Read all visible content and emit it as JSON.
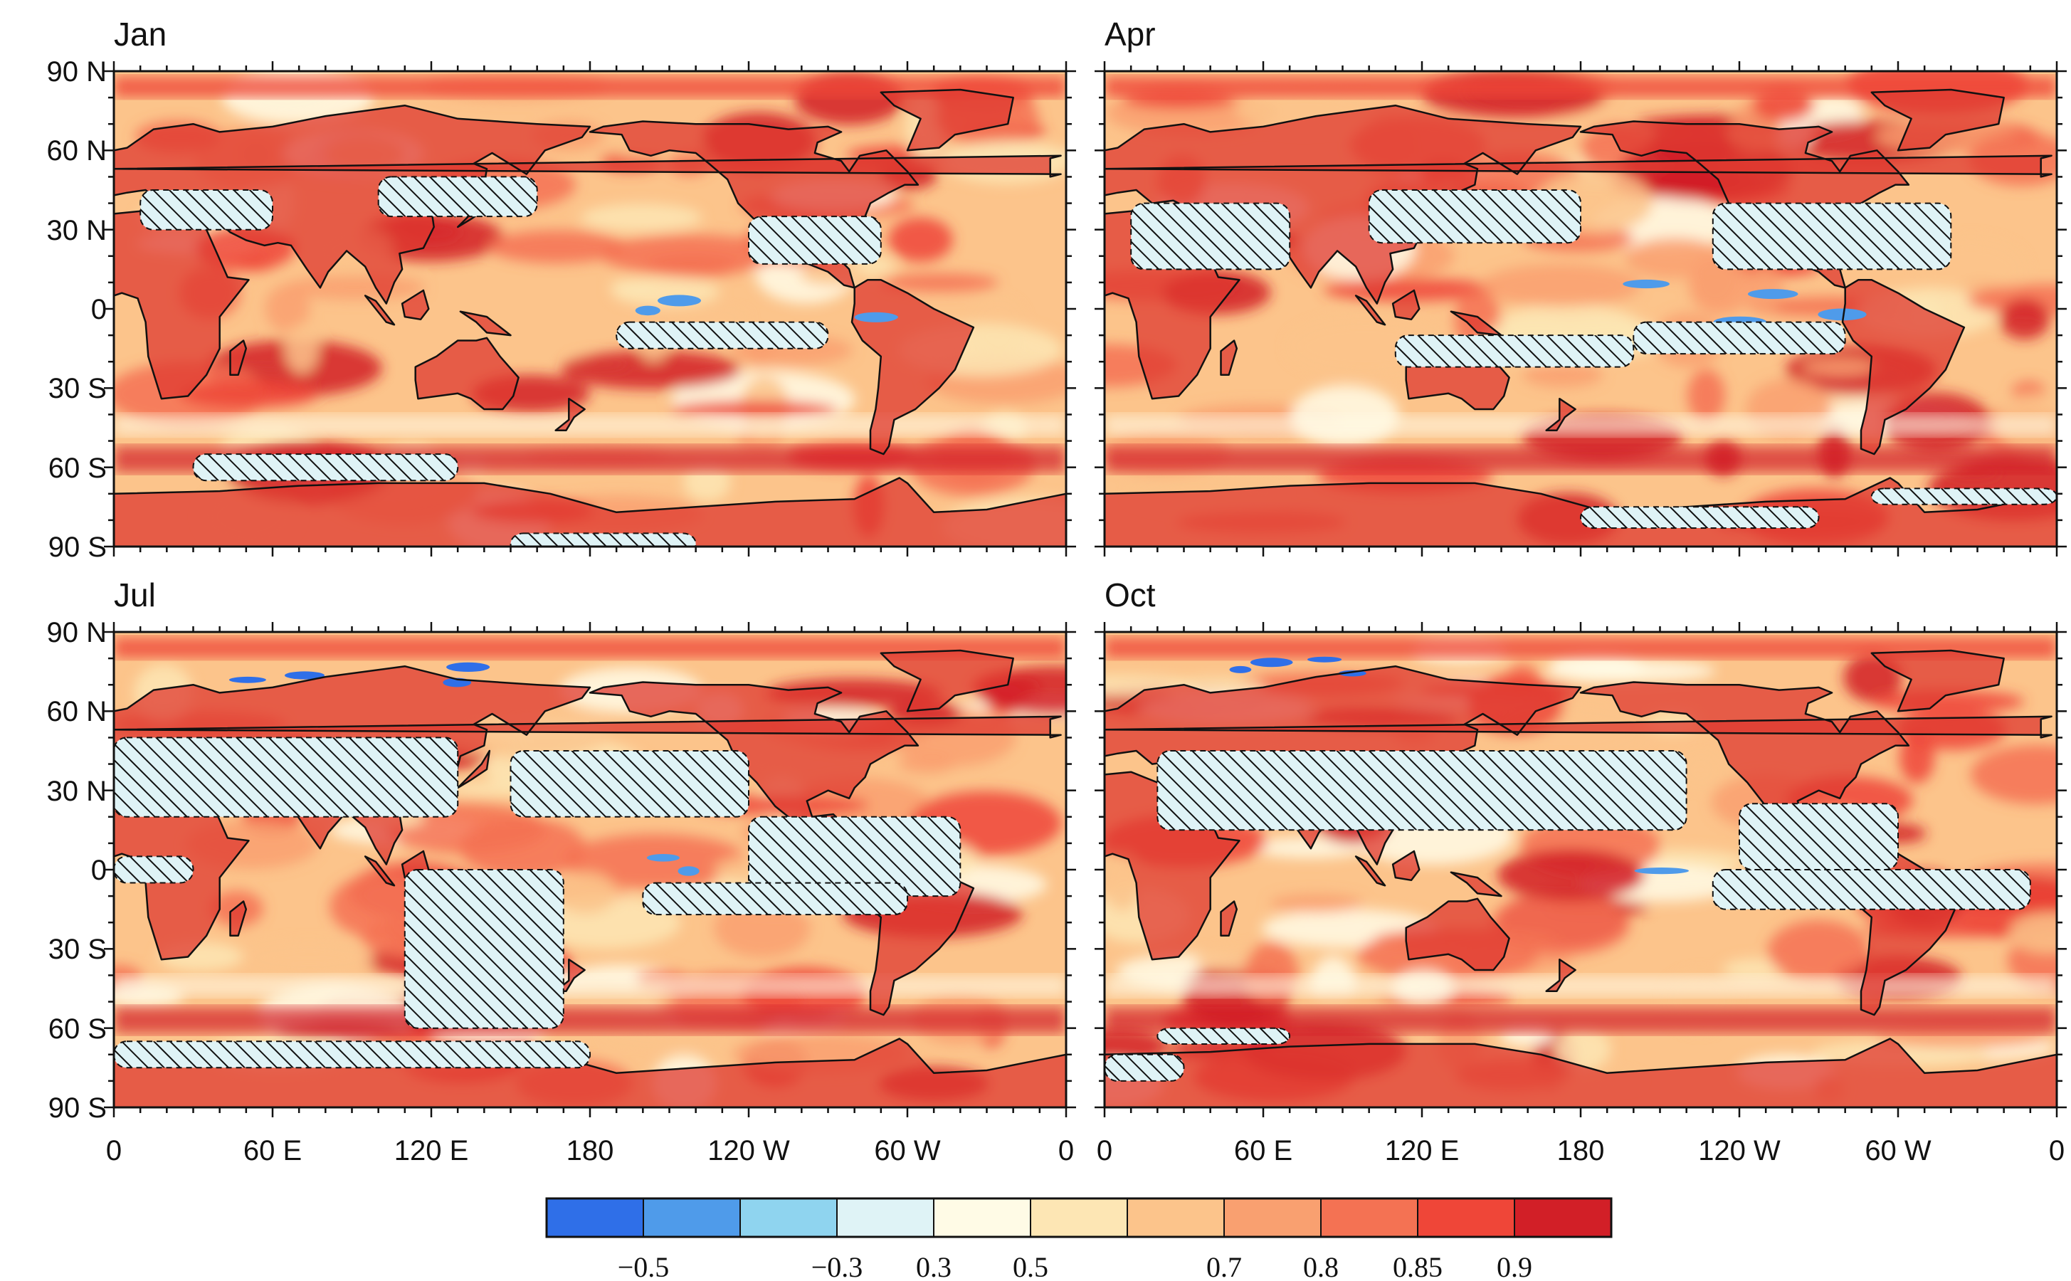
{
  "panels": [
    {
      "title": "Jan",
      "show_xlabels": false
    },
    {
      "title": "Apr",
      "show_xlabels": false
    },
    {
      "title": "Jul",
      "show_xlabels": true
    },
    {
      "title": "Oct",
      "show_xlabels": true
    }
  ],
  "y_ticks": [
    {
      "lat": 90,
      "label": "90 N"
    },
    {
      "lat": 60,
      "label": "60 N"
    },
    {
      "lat": 30,
      "label": "30 N"
    },
    {
      "lat": 0,
      "label": "0"
    },
    {
      "lat": -30,
      "label": "30 S"
    },
    {
      "lat": -60,
      "label": "60 S"
    },
    {
      "lat": -90,
      "label": "90 S"
    }
  ],
  "x_ticks": [
    {
      "lon": 0,
      "label": "0"
    },
    {
      "lon": 60,
      "label": "60 E"
    },
    {
      "lon": 120,
      "label": "120 E"
    },
    {
      "lon": 180,
      "label": "180"
    },
    {
      "lon": 240,
      "label": "120 W"
    },
    {
      "lon": 300,
      "label": "60 W"
    },
    {
      "lon": 360,
      "label": "0"
    }
  ],
  "colorbar": {
    "bins": [
      "#2f6fe8",
      "#4f9bea",
      "#8fd4ef",
      "#dff3f6",
      "#fffbe6",
      "#fde6b4",
      "#fcc48b",
      "#f9a070",
      "#f47253",
      "#ef4638",
      "#d21f27"
    ],
    "labels": [
      {
        "after_bin": 1,
        "text": "−0.5"
      },
      {
        "after_bin": 3,
        "text": "−0.3"
      },
      {
        "after_bin": 4,
        "text": "0.3"
      },
      {
        "after_bin": 5,
        "text": "0.5"
      },
      {
        "after_bin": 7,
        "text": "0.7"
      },
      {
        "after_bin": 8,
        "text": "0.8"
      },
      {
        "after_bin": 9,
        "text": "0.85"
      },
      {
        "after_bin": 10,
        "text": "0.9"
      }
    ]
  }
}
